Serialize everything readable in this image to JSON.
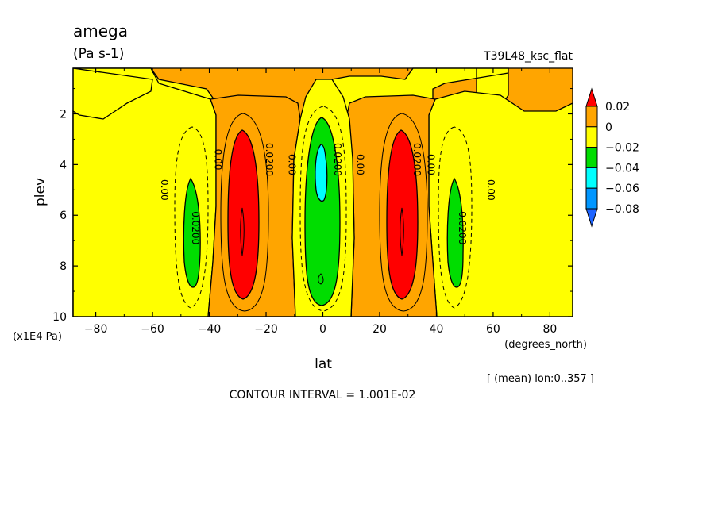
{
  "chart_data": {
    "type": "contour",
    "title": "amega",
    "units": "(Pa s-1)",
    "experiment": "T39L48_ksc_flat",
    "xlabel": "lat",
    "xunits": "(degrees_north)",
    "ylabel": "plev",
    "yunits": "(x1E4 Pa)",
    "xlim": [
      -88,
      88
    ],
    "ylim": [
      10,
      0.2
    ],
    "xticks": [
      -80,
      -60,
      -40,
      -20,
      0,
      20,
      40,
      60,
      80
    ],
    "xtick_labels": [
      "−80",
      "−60",
      "−40",
      "−20",
      "0",
      "20",
      "40",
      "60",
      "80"
    ],
    "yticks": [
      2,
      4,
      6,
      8,
      10
    ],
    "ytick_labels": [
      "2",
      "4",
      "6",
      "8",
      "10"
    ],
    "mean_note": "[ (mean) lon:0..357 ]",
    "contour_interval_text": "CONTOUR INTERVAL = 1.001E-02",
    "colorbar": {
      "levels": [
        0.02,
        0,
        -0.02,
        -0.04,
        -0.06,
        -0.08
      ],
      "labels": [
        "0.02",
        "0",
        "−0.02",
        "−0.04",
        "−0.06",
        "−0.08"
      ],
      "colors": [
        "#ff0000",
        "#ffa500",
        "#ffff00",
        "#00dd00",
        "#00ffff",
        "#0096ff",
        "#1e64ff"
      ]
    },
    "background_color": "#ffa500",
    "contour_labels": [
      {
        "text": "0.00",
        "lat": -57,
        "plev": 5.0
      },
      {
        "text": "0.0200",
        "lat": -46,
        "plev": 6.5
      },
      {
        "text": "0.00",
        "lat": -38,
        "plev": 3.8
      },
      {
        "text": "0.0200",
        "lat": -20,
        "plev": 3.8
      },
      {
        "text": "0.00",
        "lat": -12,
        "plev": 4.0
      },
      {
        "text": "0.0200",
        "lat": 4,
        "plev": 3.8
      },
      {
        "text": "0.00",
        "lat": 12,
        "plev": 4.0
      },
      {
        "text": "0.0200",
        "lat": 32,
        "plev": 3.8
      },
      {
        "text": "0.00",
        "lat": 37,
        "plev": 4.0
      },
      {
        "text": "0.0200",
        "lat": 48,
        "plev": 6.5
      },
      {
        "text": "0.00",
        "lat": 58,
        "plev": 5.0
      }
    ]
  }
}
